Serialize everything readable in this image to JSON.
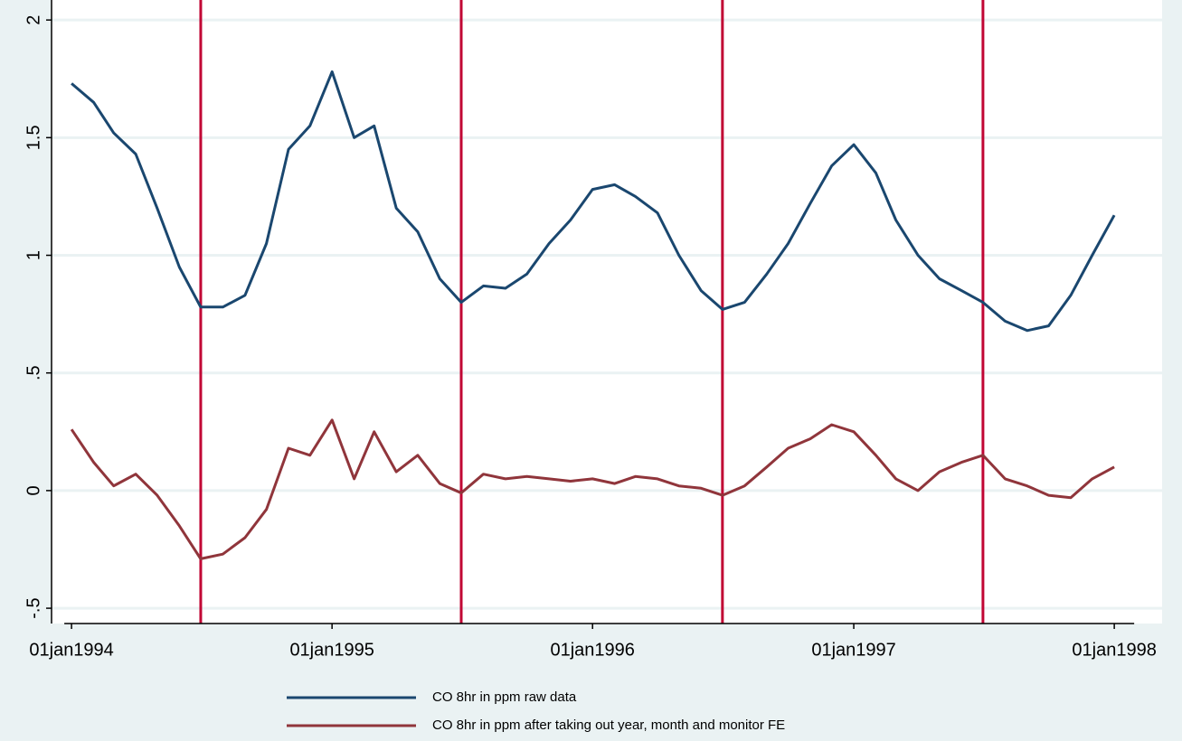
{
  "chart_data": {
    "type": "line",
    "x": [
      "1994-01-01",
      "1994-02-01",
      "1994-03-01",
      "1994-04-01",
      "1994-05-01",
      "1994-06-01",
      "1994-07-01",
      "1994-08-01",
      "1994-09-01",
      "1994-10-01",
      "1994-11-01",
      "1994-12-01",
      "1995-01-01",
      "1995-02-01",
      "1995-03-01",
      "1995-04-01",
      "1995-05-01",
      "1995-06-01",
      "1995-07-01",
      "1995-08-01",
      "1995-09-01",
      "1995-10-01",
      "1995-11-01",
      "1995-12-01",
      "1996-01-01",
      "1996-02-01",
      "1996-03-01",
      "1996-04-01",
      "1996-05-01",
      "1996-06-01",
      "1996-07-01",
      "1996-08-01",
      "1996-09-01",
      "1996-10-01",
      "1996-11-01",
      "1996-12-01",
      "1997-01-01",
      "1997-02-01",
      "1997-03-01",
      "1997-04-01",
      "1997-05-01",
      "1997-06-01",
      "1997-07-01",
      "1997-08-01",
      "1997-09-01",
      "1997-10-01",
      "1997-11-01",
      "1997-12-01",
      "1998-01-01"
    ],
    "series": [
      {
        "name": "CO 8hr in ppm raw data",
        "color": "#1a476f",
        "values": [
          1.73,
          1.65,
          1.52,
          1.43,
          1.2,
          0.95,
          0.78,
          0.78,
          0.83,
          1.05,
          1.45,
          1.55,
          1.78,
          1.5,
          1.55,
          1.2,
          1.1,
          0.9,
          0.8,
          0.87,
          0.86,
          0.92,
          1.05,
          1.15,
          1.28,
          1.3,
          1.25,
          1.18,
          1.0,
          0.85,
          0.77,
          0.8,
          0.92,
          1.05,
          1.22,
          1.38,
          1.47,
          1.35,
          1.15,
          1.0,
          0.9,
          0.85,
          0.8,
          0.72,
          0.68,
          0.7,
          0.83,
          1.0,
          1.17
        ]
      },
      {
        "name": "CO 8hr in ppm after taking out year, month and monitor FE",
        "color": "#90353b",
        "values": [
          0.26,
          0.12,
          0.02,
          0.07,
          -0.02,
          -0.15,
          -0.29,
          -0.27,
          -0.2,
          -0.08,
          0.18,
          0.15,
          0.3,
          0.05,
          0.25,
          0.08,
          0.15,
          0.03,
          -0.01,
          0.07,
          0.05,
          0.06,
          0.05,
          0.04,
          0.05,
          0.03,
          0.06,
          0.05,
          0.02,
          0.01,
          -0.02,
          0.02,
          0.1,
          0.18,
          0.22,
          0.28,
          0.25,
          0.15,
          0.05,
          0.0,
          0.08,
          0.12,
          0.15,
          0.05,
          0.02,
          -0.02,
          -0.03,
          0.05,
          0.1
        ]
      }
    ],
    "xlim": [
      "1993-12-04",
      "1998-03-09"
    ],
    "xticks": [
      {
        "value": "1994-01-01",
        "label": "01jan1994"
      },
      {
        "value": "1995-01-01",
        "label": "01jan1995"
      },
      {
        "value": "1996-01-01",
        "label": "01jan1996"
      },
      {
        "value": "1997-01-01",
        "label": "01jan1997"
      },
      {
        "value": "1998-01-01",
        "label": "01jan1998"
      }
    ],
    "ylim": [
      -0.565,
      2.085
    ],
    "yticks": [
      {
        "value": -0.5,
        "label": "-.5"
      },
      0,
      {
        "value": 0.5,
        "label": ".5"
      },
      1,
      1.5,
      2
    ],
    "xlines": [
      "1994-07-01",
      "1995-07-01",
      "1996-07-01",
      "1997-07-01"
    ],
    "xline_color": "#c10534",
    "grid": true,
    "legend": "bottom"
  }
}
